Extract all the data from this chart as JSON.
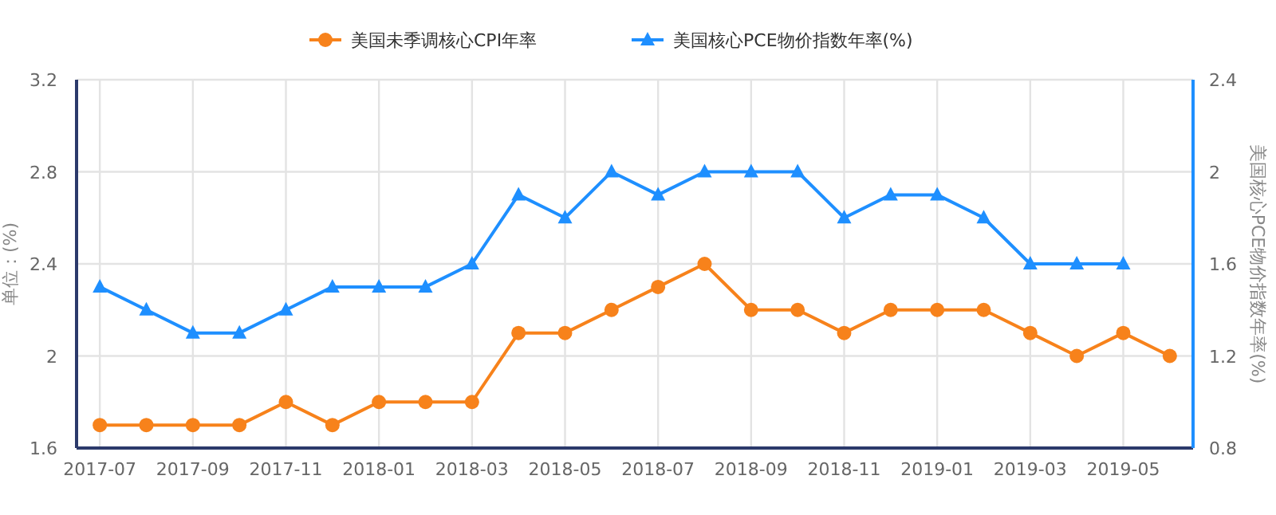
{
  "chart_data": {
    "type": "line",
    "ylabel": "单位：(%)",
    "y2label": "美国核心PCE物价指数年率(%)",
    "categories": [
      "2017-07",
      null,
      "2017-09",
      null,
      "2017-11",
      null,
      "2018-01",
      null,
      "2018-03",
      null,
      "2018-05",
      null,
      "2018-07",
      null,
      "2018-09",
      null,
      "2018-11",
      null,
      "2019-01",
      null,
      "2019-03",
      null,
      "2019-05",
      null
    ],
    "series": [
      {
        "name": "美国未季调核心CPI年率",
        "color": "#f7821b",
        "marker": "circle",
        "values": [
          1.7,
          1.7,
          1.7,
          1.7,
          1.8,
          1.7,
          1.8,
          1.8,
          1.8,
          2.1,
          2.1,
          2.2,
          2.3,
          2.4,
          2.2,
          2.2,
          2.1,
          2.2,
          2.2,
          2.2,
          2.1,
          2.0,
          2.1,
          2.0
        ]
      },
      {
        "name": "美国核心PCE物价指数年率(%)",
        "color": "#1e8fff",
        "marker": "triangle",
        "axis": "y2",
        "values": [
          1.5,
          1.4,
          1.3,
          1.3,
          1.4,
          1.5,
          1.5,
          1.5,
          1.6,
          1.9,
          1.8,
          2.0,
          1.9,
          2.0,
          2.0,
          2.0,
          1.8,
          1.9,
          1.9,
          1.8,
          1.6,
          1.6,
          1.6,
          null
        ]
      }
    ],
    "ylim": [
      1.6,
      3.2
    ],
    "yticks": [
      1.6,
      2,
      2.4,
      2.8,
      3.2
    ],
    "y2lim": [
      0.8,
      2.4
    ],
    "y2ticks": [
      0.8,
      1.2,
      1.6,
      2,
      2.4
    ],
    "grid": true,
    "legend": "top",
    "line_style": "solid"
  }
}
